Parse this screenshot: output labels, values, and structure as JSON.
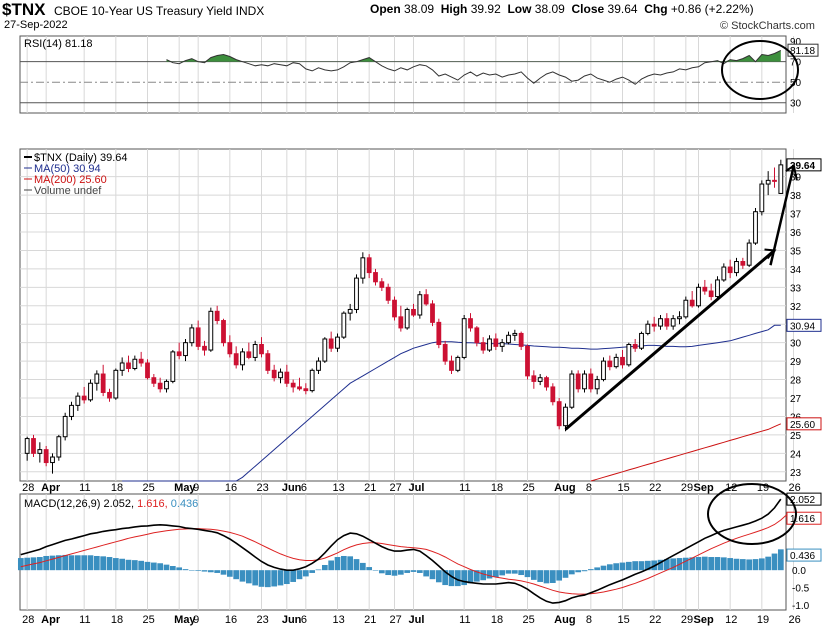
{
  "header": {
    "symbol": "$TNX",
    "name": "CBOE 10-Year US Treasury Yield INDX",
    "date": "27-Sep-2022",
    "open_label": "Open",
    "open": "38.09",
    "high_label": "High",
    "high": "39.92",
    "low_label": "Low",
    "low": "38.09",
    "close_label": "Close",
    "close": "39.64",
    "chg_label": "Chg",
    "chg": "+0.86 (+2.22%)",
    "source": "© StockCharts.com"
  },
  "colors": {
    "up": "#000000",
    "down": "#cc1133",
    "ma50": "#1f2f8f",
    "ma200": "#cc1111",
    "rsi_fill": "#3d8f3d",
    "macd_line": "#000000",
    "signal_line": "#dd2222",
    "histogram": "#3a8fc0",
    "grid": "#d8d8d8"
  },
  "chart_data": [
    {
      "type": "line",
      "panel": "RSI",
      "label": "RSI(14) 81.18",
      "last_value_label": "81.18",
      "ylim": [
        20,
        95
      ],
      "y_ticks": [
        "90",
        "70",
        "50",
        "30"
      ],
      "reference_lines": [
        70,
        50,
        30
      ],
      "values": [
        72,
        69,
        68,
        71,
        73,
        70,
        69,
        74,
        76,
        77,
        75,
        72,
        70,
        68,
        66,
        67,
        66,
        68,
        67,
        66,
        69,
        68,
        63,
        61,
        64,
        62,
        61,
        62,
        65,
        69,
        70,
        72,
        74,
        70,
        66,
        63,
        61,
        64,
        62,
        65,
        67,
        66,
        62,
        56,
        58,
        55,
        52,
        57,
        60,
        56,
        59,
        57,
        58,
        55,
        57,
        58,
        60,
        54,
        49,
        54,
        58,
        60,
        57,
        55,
        51,
        52,
        56,
        58,
        54,
        52,
        50,
        53,
        55,
        52,
        48,
        53,
        56,
        58,
        57,
        59,
        60,
        63,
        62,
        64,
        65,
        69,
        70,
        71,
        68,
        72,
        71,
        73,
        76,
        70,
        77,
        76,
        78,
        81
      ]
    },
    {
      "type": "candlestick",
      "panel": "price",
      "title": "$TNX (Daily) 39.64",
      "legend": [
        "$TNX (Daily) 39.64",
        "MA(50) 30.94",
        "MA(200) 25.60",
        "Volume undef"
      ],
      "ylim": [
        22.5,
        40.5
      ],
      "y_ticks": [
        "39",
        "38",
        "37",
        "36",
        "35",
        "34",
        "33",
        "32",
        "31",
        "30",
        "29",
        "28",
        "27",
        "26",
        "25",
        "24",
        "23"
      ],
      "last_price_label": "39.64",
      "ma50_label": "30.94",
      "ma200_label": "25.60",
      "ohlc": [
        [
          24.0,
          24.9,
          23.6,
          24.8
        ],
        [
          24.8,
          25.0,
          23.8,
          24.0
        ],
        [
          24.0,
          24.6,
          23.5,
          24.2
        ],
        [
          24.2,
          24.4,
          23.3,
          23.5
        ],
        [
          23.5,
          24.0,
          22.9,
          23.8
        ],
        [
          23.8,
          25.0,
          23.6,
          24.9
        ],
        [
          24.9,
          26.2,
          24.7,
          26.0
        ],
        [
          26.0,
          26.8,
          25.8,
          26.6
        ],
        [
          26.6,
          27.3,
          26.3,
          27.1
        ],
        [
          27.1,
          27.6,
          26.7,
          26.9
        ],
        [
          26.9,
          28.0,
          26.8,
          27.8
        ],
        [
          27.8,
          28.5,
          27.4,
          28.3
        ],
        [
          28.3,
          28.8,
          27.1,
          27.3
        ],
        [
          27.3,
          27.5,
          26.8,
          27.0
        ],
        [
          27.0,
          28.6,
          26.9,
          28.5
        ],
        [
          28.5,
          29.2,
          28.2,
          28.9
        ],
        [
          28.9,
          29.3,
          28.4,
          28.6
        ],
        [
          28.6,
          29.3,
          28.5,
          29.1
        ],
        [
          29.1,
          29.5,
          28.7,
          28.9
        ],
        [
          28.9,
          29.1,
          28.0,
          28.1
        ],
        [
          28.1,
          28.3,
          27.6,
          27.8
        ],
        [
          27.8,
          28.1,
          27.3,
          27.5
        ],
        [
          27.5,
          28.0,
          27.3,
          27.9
        ],
        [
          27.9,
          29.6,
          27.8,
          29.5
        ],
        [
          29.5,
          30.0,
          29.1,
          29.3
        ],
        [
          29.3,
          30.2,
          29.0,
          30.0
        ],
        [
          30.0,
          31.0,
          29.8,
          30.8
        ],
        [
          30.8,
          31.2,
          29.6,
          29.8
        ],
        [
          29.8,
          30.1,
          29.3,
          29.6
        ],
        [
          29.6,
          31.9,
          29.5,
          31.7
        ],
        [
          31.7,
          32.0,
          31.0,
          31.2
        ],
        [
          31.2,
          31.3,
          29.8,
          30.0
        ],
        [
          30.0,
          30.4,
          29.2,
          29.4
        ],
        [
          29.4,
          29.8,
          28.6,
          28.8
        ],
        [
          28.8,
          29.7,
          28.5,
          29.5
        ],
        [
          29.5,
          30.0,
          29.1,
          29.2
        ],
        [
          29.2,
          30.1,
          29.0,
          29.9
        ],
        [
          29.9,
          30.3,
          29.2,
          29.4
        ],
        [
          29.4,
          29.6,
          28.3,
          28.5
        ],
        [
          28.5,
          28.8,
          27.9,
          28.1
        ],
        [
          28.1,
          28.6,
          27.8,
          28.4
        ],
        [
          28.4,
          28.8,
          27.6,
          27.8
        ],
        [
          27.8,
          28.0,
          27.3,
          27.6
        ],
        [
          27.6,
          28.1,
          27.4,
          27.5
        ],
        [
          27.5,
          27.8,
          27.2,
          27.4
        ],
        [
          27.4,
          28.6,
          27.3,
          28.5
        ],
        [
          28.5,
          29.2,
          28.3,
          29.0
        ],
        [
          29.0,
          30.3,
          28.9,
          30.2
        ],
        [
          30.2,
          30.6,
          29.5,
          29.7
        ],
        [
          29.7,
          30.5,
          29.5,
          30.3
        ],
        [
          30.3,
          31.7,
          30.2,
          31.6
        ],
        [
          31.6,
          32.1,
          31.2,
          31.8
        ],
        [
          31.8,
          33.7,
          31.6,
          33.5
        ],
        [
          33.5,
          34.9,
          33.2,
          34.6
        ],
        [
          34.6,
          34.8,
          33.5,
          33.8
        ],
        [
          33.8,
          34.0,
          33.1,
          33.3
        ],
        [
          33.3,
          33.5,
          32.8,
          33.0
        ],
        [
          33.0,
          33.2,
          32.1,
          32.3
        ],
        [
          32.3,
          32.5,
          31.2,
          31.4
        ],
        [
          31.4,
          32.0,
          30.6,
          30.8
        ],
        [
          30.8,
          31.9,
          30.7,
          31.8
        ],
        [
          31.8,
          32.1,
          31.4,
          31.5
        ],
        [
          31.5,
          32.8,
          31.3,
          32.6
        ],
        [
          32.6,
          32.9,
          32.0,
          32.1
        ],
        [
          32.1,
          32.3,
          30.9,
          31.1
        ],
        [
          31.1,
          31.3,
          29.7,
          29.9
        ],
        [
          29.9,
          30.1,
          28.8,
          29.0
        ],
        [
          29.0,
          29.3,
          28.3,
          28.5
        ],
        [
          28.5,
          29.3,
          28.4,
          29.2
        ],
        [
          29.2,
          31.5,
          29.1,
          31.3
        ],
        [
          31.3,
          31.6,
          30.6,
          30.8
        ],
        [
          30.8,
          30.9,
          29.8,
          30.0
        ],
        [
          30.0,
          30.3,
          29.4,
          29.6
        ],
        [
          29.6,
          30.4,
          29.5,
          30.2
        ],
        [
          30.2,
          30.5,
          29.6,
          29.8
        ],
        [
          29.8,
          30.2,
          29.5,
          30.0
        ],
        [
          30.0,
          30.6,
          29.9,
          30.4
        ],
        [
          30.4,
          30.7,
          30.1,
          30.5
        ],
        [
          30.5,
          30.6,
          29.6,
          29.8
        ],
        [
          29.8,
          29.9,
          28.0,
          28.2
        ],
        [
          28.2,
          28.5,
          27.5,
          27.9
        ],
        [
          27.9,
          28.3,
          27.7,
          28.1
        ],
        [
          28.1,
          28.2,
          27.4,
          27.6
        ],
        [
          27.6,
          27.8,
          26.6,
          26.8
        ],
        [
          26.8,
          27.0,
          25.3,
          25.5
        ],
        [
          25.5,
          26.7,
          25.2,
          26.5
        ],
        [
          26.5,
          28.5,
          26.4,
          28.3
        ],
        [
          28.3,
          28.5,
          27.3,
          27.5
        ],
        [
          27.5,
          28.5,
          27.3,
          28.3
        ],
        [
          28.3,
          28.6,
          27.3,
          27.5
        ],
        [
          27.5,
          28.2,
          27.2,
          28.0
        ],
        [
          28.0,
          29.2,
          27.9,
          29.0
        ],
        [
          29.0,
          29.3,
          28.5,
          28.7
        ],
        [
          28.7,
          29.4,
          28.6,
          29.2
        ],
        [
          29.2,
          29.6,
          28.6,
          28.8
        ],
        [
          28.8,
          30.0,
          28.7,
          29.9
        ],
        [
          29.9,
          30.2,
          29.5,
          29.7
        ],
        [
          29.7,
          30.6,
          29.6,
          30.5
        ],
        [
          30.5,
          31.2,
          30.4,
          31.0
        ],
        [
          31.0,
          31.4,
          30.6,
          30.9
        ],
        [
          30.9,
          31.5,
          30.7,
          31.3
        ],
        [
          31.3,
          31.6,
          30.7,
          30.9
        ],
        [
          30.9,
          31.5,
          30.7,
          31.3
        ],
        [
          31.3,
          31.7,
          31.0,
          31.4
        ],
        [
          31.4,
          32.5,
          31.3,
          32.3
        ],
        [
          32.3,
          32.8,
          31.9,
          32.0
        ],
        [
          32.0,
          33.2,
          31.9,
          33.0
        ],
        [
          33.0,
          33.4,
          32.6,
          32.8
        ],
        [
          32.8,
          33.2,
          32.3,
          32.5
        ],
        [
          32.5,
          33.6,
          32.4,
          33.4
        ],
        [
          33.4,
          34.3,
          33.3,
          34.1
        ],
        [
          34.1,
          34.5,
          33.5,
          33.8
        ],
        [
          33.8,
          34.6,
          33.6,
          34.4
        ],
        [
          34.4,
          34.6,
          34.0,
          34.2
        ],
        [
          34.2,
          35.6,
          34.1,
          35.4
        ],
        [
          35.4,
          37.3,
          35.3,
          37.1
        ],
        [
          37.1,
          38.8,
          36.9,
          38.6
        ],
        [
          38.6,
          39.3,
          38.0,
          38.8
        ],
        [
          38.8,
          39.5,
          38.4,
          38.78
        ],
        [
          38.09,
          39.92,
          38.09,
          39.64
        ]
      ],
      "ma50_values": [
        17.0,
        17.3,
        17.6,
        17.9,
        18.2,
        18.5,
        18.8,
        19.1,
        19.4,
        19.7,
        20.0,
        20.3,
        20.6,
        20.9,
        21.2,
        21.5,
        21.8,
        22.1,
        22.4,
        22.7,
        23.0,
        23.3,
        23.6,
        23.9,
        24.2,
        24.5,
        24.8,
        25.1,
        25.4,
        25.7,
        26.0,
        26.3,
        26.6,
        26.9,
        27.2,
        27.5,
        27.8,
        28.0,
        28.2,
        28.4,
        28.6,
        28.8,
        29.0,
        29.2,
        29.4,
        29.55,
        29.7,
        29.8,
        29.9,
        30.0,
        30.05,
        30.05,
        30.05,
        30.02,
        30.0,
        30.0,
        29.98,
        29.95,
        29.95,
        29.95,
        29.95,
        29.93,
        29.9,
        29.88,
        29.85,
        29.82,
        29.8,
        29.78,
        29.75,
        29.75,
        29.73,
        29.7,
        29.7,
        29.68,
        29.65,
        29.65,
        29.68,
        29.7,
        29.72,
        29.75,
        29.78,
        29.8,
        29.82,
        29.85,
        29.85,
        29.83,
        29.8,
        29.8,
        29.78,
        29.78,
        29.8,
        29.85,
        29.9,
        29.95,
        30.0,
        30.05,
        30.1,
        30.2,
        30.3,
        30.4,
        30.5,
        30.6,
        30.7,
        30.94,
        30.94
      ],
      "ma200_values": [
        18.5,
        18.6,
        18.7,
        18.8,
        18.9,
        19.0,
        19.1,
        19.2,
        19.3,
        19.4,
        19.5,
        19.6,
        19.7,
        19.8,
        19.9,
        20.0,
        20.1,
        20.2,
        20.3,
        20.4,
        20.5,
        20.6,
        20.7,
        20.8,
        20.9,
        21.0,
        21.1,
        21.2,
        21.3,
        21.4,
        21.5,
        21.6,
        21.7,
        21.8,
        21.9,
        22.0,
        22.1,
        22.2,
        22.3,
        22.4,
        22.5,
        22.6,
        22.7,
        22.8,
        22.9,
        23.0,
        23.1,
        23.2,
        23.3,
        23.4,
        23.5,
        23.6,
        23.7,
        23.8,
        23.9,
        24.0,
        24.1,
        24.2,
        24.3,
        24.4,
        24.5,
        24.6,
        24.7,
        24.8,
        24.9,
        25.0,
        25.1,
        25.2,
        25.3,
        25.45,
        25.6
      ]
    },
    {
      "type": "line",
      "panel": "MACD",
      "label": "MACD(12,26,9) 2.052, 1.616, 0.436",
      "macd_value": "2.052",
      "signal_value": "1.616",
      "hist_value": "0.436",
      "ylim": [
        -1.15,
        2.2
      ],
      "y_ticks": [
        "0.0",
        "-0.5",
        "-1.0"
      ],
      "macd": [
        0.45,
        0.5,
        0.55,
        0.6,
        0.68,
        0.74,
        0.8,
        0.86,
        0.9,
        0.95,
        1.0,
        1.05,
        1.08,
        1.12,
        1.15,
        1.17,
        1.2,
        1.22,
        1.25,
        1.27,
        1.28,
        1.3,
        1.31,
        1.3,
        1.28,
        1.26,
        1.22,
        1.2,
        1.18,
        1.15,
        1.12,
        1.08,
        1.0,
        0.9,
        0.78,
        0.65,
        0.52,
        0.38,
        0.25,
        0.15,
        0.08,
        0.03,
        0.0,
        0.0,
        0.04,
        0.1,
        0.2,
        0.32,
        0.5,
        0.7,
        0.88,
        1.0,
        1.07,
        1.05,
        0.98,
        0.88,
        0.78,
        0.68,
        0.6,
        0.55,
        0.55,
        0.58,
        0.6,
        0.55,
        0.42,
        0.28,
        0.12,
        -0.05,
        -0.18,
        -0.28,
        -0.33,
        -0.36,
        -0.38,
        -0.4,
        -0.4,
        -0.4,
        -0.38,
        -0.36,
        -0.38,
        -0.45,
        -0.55,
        -0.68,
        -0.8,
        -0.9,
        -0.95,
        -0.93,
        -0.88,
        -0.8,
        -0.75,
        -0.72,
        -0.65,
        -0.58,
        -0.5,
        -0.42,
        -0.35,
        -0.28,
        -0.2,
        -0.12,
        -0.05,
        0.03,
        0.12,
        0.22,
        0.32,
        0.42,
        0.52,
        0.62,
        0.72,
        0.82,
        0.92,
        1.0,
        1.08,
        1.15,
        1.2,
        1.25,
        1.3,
        1.35,
        1.42,
        1.5,
        1.62,
        1.8,
        2.052
      ],
      "signal": [
        0.1,
        0.14,
        0.18,
        0.22,
        0.27,
        0.32,
        0.37,
        0.42,
        0.47,
        0.52,
        0.57,
        0.62,
        0.67,
        0.72,
        0.77,
        0.82,
        0.87,
        0.92,
        0.96,
        1.0,
        1.04,
        1.08,
        1.11,
        1.14,
        1.16,
        1.18,
        1.19,
        1.2,
        1.2,
        1.19,
        1.18,
        1.16,
        1.13,
        1.09,
        1.04,
        0.98,
        0.9,
        0.82,
        0.73,
        0.64,
        0.55,
        0.47,
        0.4,
        0.34,
        0.3,
        0.28,
        0.28,
        0.3,
        0.35,
        0.42,
        0.5,
        0.59,
        0.67,
        0.73,
        0.77,
        0.79,
        0.79,
        0.77,
        0.74,
        0.71,
        0.68,
        0.66,
        0.65,
        0.63,
        0.6,
        0.54,
        0.47,
        0.38,
        0.28,
        0.18,
        0.1,
        0.02,
        -0.05,
        -0.11,
        -0.16,
        -0.2,
        -0.23,
        -0.26,
        -0.28,
        -0.31,
        -0.35,
        -0.4,
        -0.46,
        -0.52,
        -0.58,
        -0.63,
        -0.66,
        -0.68,
        -0.69,
        -0.69,
        -0.68,
        -0.66,
        -0.63,
        -0.59,
        -0.55,
        -0.5,
        -0.44,
        -0.38,
        -0.31,
        -0.24,
        -0.16,
        -0.08,
        0.0,
        0.08,
        0.17,
        0.26,
        0.35,
        0.44,
        0.53,
        0.62,
        0.7,
        0.78,
        0.85,
        0.92,
        0.98,
        1.04,
        1.1,
        1.16,
        1.23,
        1.32,
        1.45,
        1.616
      ]
    }
  ],
  "x_axis": {
    "labels": [
      "28",
      "Apr",
      "11",
      "18",
      "25",
      "May",
      "9",
      "16",
      "23",
      "Jun",
      "6",
      "13",
      "21",
      "27",
      "Jul",
      "11",
      "18",
      "25",
      "Aug",
      "8",
      "15",
      "22",
      "29",
      "Sep",
      "12",
      "19",
      "26"
    ],
    "bold_labels": [
      "Apr",
      "May",
      "Jun",
      "Jul",
      "Aug",
      "Sep"
    ]
  }
}
